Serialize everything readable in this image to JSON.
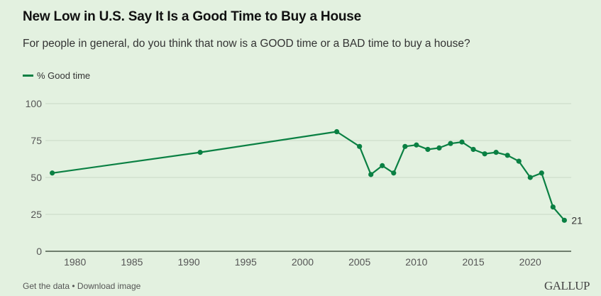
{
  "header": {
    "title": "New Low in U.S. Say It Is a Good Time to Buy a House",
    "subtitle": "For people in general, do you think that now is a GOOD time or a BAD time to buy a house?"
  },
  "footer": {
    "get_data": "Get the data",
    "separator": " • ",
    "download": "Download image",
    "brand": "GALLUP"
  },
  "colors": {
    "line": "#0a8043",
    "background": "#e3f1e0",
    "grid": "#c9d9c6",
    "axis": "#2a3a2a"
  },
  "chart_data": {
    "type": "line",
    "title": "New Low in U.S. Say It Is a Good Time to Buy a House",
    "subtitle": "For people in general, do you think that now is a GOOD time or a BAD time to buy a house?",
    "xlabel": "",
    "ylabel": "",
    "xlim": [
      1977.4,
      2023.6
    ],
    "ylim": [
      0,
      100
    ],
    "x_ticks": [
      1980,
      1985,
      1990,
      1995,
      2000,
      2005,
      2010,
      2015,
      2020
    ],
    "y_ticks": [
      0,
      25,
      50,
      75,
      100
    ],
    "grid": true,
    "legend_position": "top-left",
    "series": [
      {
        "name": "% Good time",
        "x": [
          1978,
          1991,
          2003,
          2005,
          2006,
          2007,
          2008,
          2009,
          2010,
          2011,
          2012,
          2013,
          2014,
          2015,
          2016,
          2017,
          2018,
          2019,
          2020,
          2021,
          2022,
          2023
        ],
        "values": [
          53,
          67,
          81,
          71,
          52,
          58,
          53,
          71,
          72,
          69,
          70,
          73,
          74,
          69,
          66,
          67,
          65,
          61,
          50,
          53,
          30,
          21
        ]
      }
    ],
    "annotations": [
      {
        "x": 2023,
        "y": 21,
        "text": "21"
      }
    ]
  }
}
